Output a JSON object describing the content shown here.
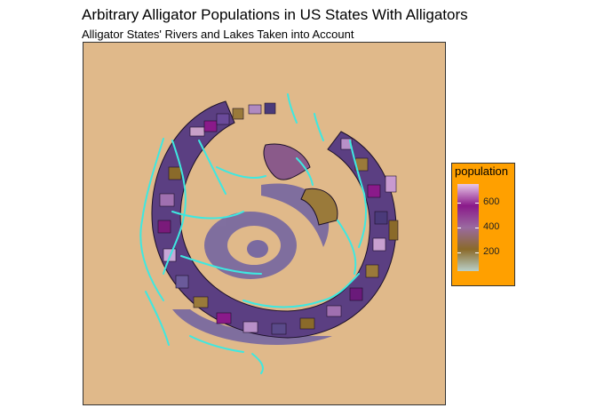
{
  "title": "Arbitrary Alligator Populations in US States With Alligators",
  "subtitle": "Alligator States' Rivers and Lakes Taken into Account",
  "colors": {
    "panel_background": "#e0b98a",
    "legend_background": "#ffa000",
    "rivers": "#3ee8e0",
    "lake_shadow": "#7a6aa0",
    "ring_base": "#5b3f82",
    "ring_outline": "#1c1028"
  },
  "legend": {
    "title": "population",
    "ticks": [
      "600",
      "400",
      "200"
    ],
    "tick_values": [
      600,
      400,
      200
    ],
    "range": [
      50,
      750
    ],
    "gradient": [
      "#b8cfc8",
      "#8a6a2a",
      "#9a6aa0",
      "#8a1a8a",
      "#e8c8e8"
    ]
  }
}
